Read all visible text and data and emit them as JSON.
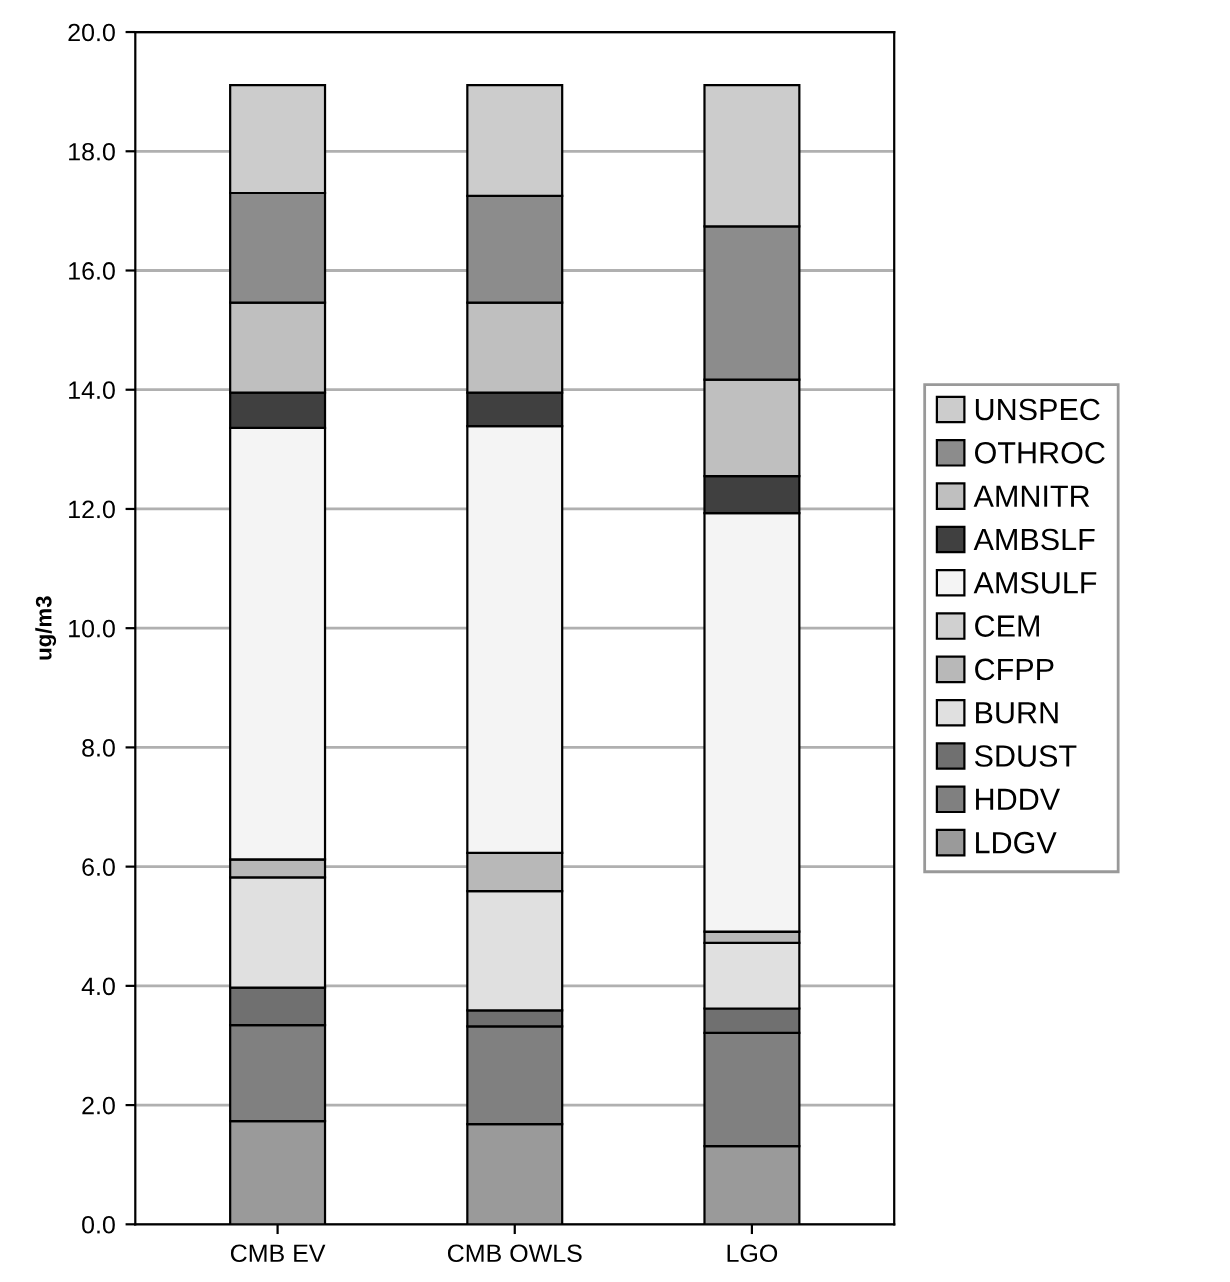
{
  "chart_data": {
    "type": "bar",
    "stacked": true,
    "ylabel": "ug/m3",
    "categories": [
      "CMB EV",
      "CMB OWLS",
      "LGO"
    ],
    "series": [
      {
        "name": "LDGV",
        "color": "#9a9a9a",
        "values": [
          1.73,
          1.68,
          1.31
        ]
      },
      {
        "name": "HDDV",
        "color": "#808080",
        "values": [
          1.61,
          1.64,
          1.9
        ]
      },
      {
        "name": "SDUST",
        "color": "#707070",
        "values": [
          0.63,
          0.27,
          0.41
        ]
      },
      {
        "name": "BURN",
        "color": "#e0e0e0",
        "values": [
          1.85,
          2.0,
          1.1
        ]
      },
      {
        "name": "CFPP",
        "color": "#b8b8b8",
        "values": [
          0.3,
          0.64,
          0.19
        ]
      },
      {
        "name": "CEM",
        "color": "#d0d0d0",
        "values": [
          0,
          0,
          0
        ]
      },
      {
        "name": "AMSULF",
        "color": "#f4f4f4",
        "values": [
          7.24,
          7.16,
          7.02
        ]
      },
      {
        "name": "AMBSLF",
        "color": "#404040",
        "values": [
          0.59,
          0.56,
          0.62
        ]
      },
      {
        "name": "AMNITR",
        "color": "#bfbfbf",
        "values": [
          1.51,
          1.51,
          1.62
        ]
      },
      {
        "name": "OTHROC",
        "color": "#8c8c8c",
        "values": [
          1.84,
          1.79,
          2.57
        ]
      },
      {
        "name": "UNSPEC",
        "color": "#cccccc",
        "values": [
          1.81,
          1.86,
          2.37
        ]
      }
    ],
    "ylim": [
      0,
      20
    ],
    "yticks": [
      {
        "value": 0,
        "label": "0.0"
      },
      {
        "value": 2,
        "label": "2.0"
      },
      {
        "value": 4,
        "label": "4.0"
      },
      {
        "value": 6,
        "label": "6.0"
      },
      {
        "value": 8,
        "label": "8.0"
      },
      {
        "value": 10,
        "label": "10.0"
      },
      {
        "value": 12,
        "label": "12.0"
      },
      {
        "value": 14,
        "label": "14.0"
      },
      {
        "value": 16,
        "label": "16.0"
      },
      {
        "value": 18,
        "label": "18.0"
      },
      {
        "value": 20,
        "label": "20.0"
      }
    ],
    "grid": "y",
    "legend": "right"
  }
}
